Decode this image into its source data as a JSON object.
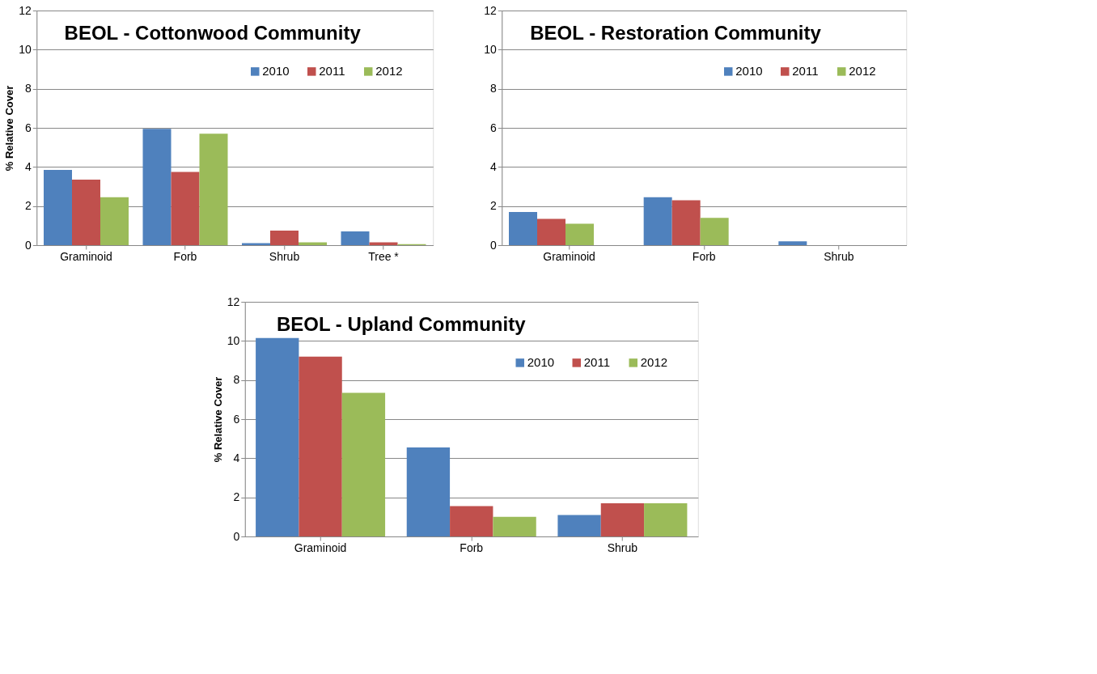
{
  "chart_data": [
    {
      "type": "bar",
      "title": "BEOL - Cottonwood Community",
      "ylabel": "% Relative Cover",
      "categories": [
        "Graminoid",
        "Forb",
        "Shrub",
        "Tree *"
      ],
      "series": [
        {
          "name": "2010",
          "color": "#4f81bd",
          "values": [
            3.85,
            5.95,
            0.1,
            0.7
          ]
        },
        {
          "name": "2011",
          "color": "#c0504d",
          "values": [
            3.35,
            3.75,
            0.75,
            0.15
          ]
        },
        {
          "name": "2012",
          "color": "#9bbb59",
          "values": [
            2.45,
            5.7,
            0.15,
            0.05
          ]
        }
      ],
      "ylim": [
        0,
        12
      ],
      "yticks": [
        0,
        2,
        4,
        6,
        8,
        10,
        12
      ],
      "grid": "y",
      "legend": "top right"
    },
    {
      "type": "bar",
      "title": "BEOL - Restoration Community",
      "categories": [
        "Graminoid",
        "Forb",
        "Shrub"
      ],
      "series": [
        {
          "name": "2010",
          "color": "#4f81bd",
          "values": [
            1.7,
            2.45,
            0.2
          ]
        },
        {
          "name": "2011",
          "color": "#c0504d",
          "values": [
            1.35,
            2.3,
            0
          ]
        },
        {
          "name": "2012",
          "color": "#9bbb59",
          "values": [
            1.1,
            1.4,
            0
          ]
        }
      ],
      "ylim": [
        0,
        12
      ],
      "yticks": [
        0,
        2,
        4,
        6,
        8,
        10,
        12
      ],
      "grid": "y",
      "legend": "top right"
    },
    {
      "type": "bar",
      "title": "BEOL - Upland Community",
      "ylabel": "% Relative Cover",
      "categories": [
        "Graminoid",
        "Forb",
        "Shrub"
      ],
      "series": [
        {
          "name": "2010",
          "color": "#4f81bd",
          "values": [
            10.15,
            4.55,
            1.1
          ]
        },
        {
          "name": "2011",
          "color": "#c0504d",
          "values": [
            9.2,
            1.55,
            1.7
          ]
        },
        {
          "name": "2012",
          "color": "#9bbb59",
          "values": [
            7.35,
            1.0,
            1.7
          ]
        }
      ],
      "ylim": [
        0,
        12
      ],
      "yticks": [
        0,
        2,
        4,
        6,
        8,
        10,
        12
      ],
      "grid": "y",
      "legend": "top right"
    }
  ]
}
